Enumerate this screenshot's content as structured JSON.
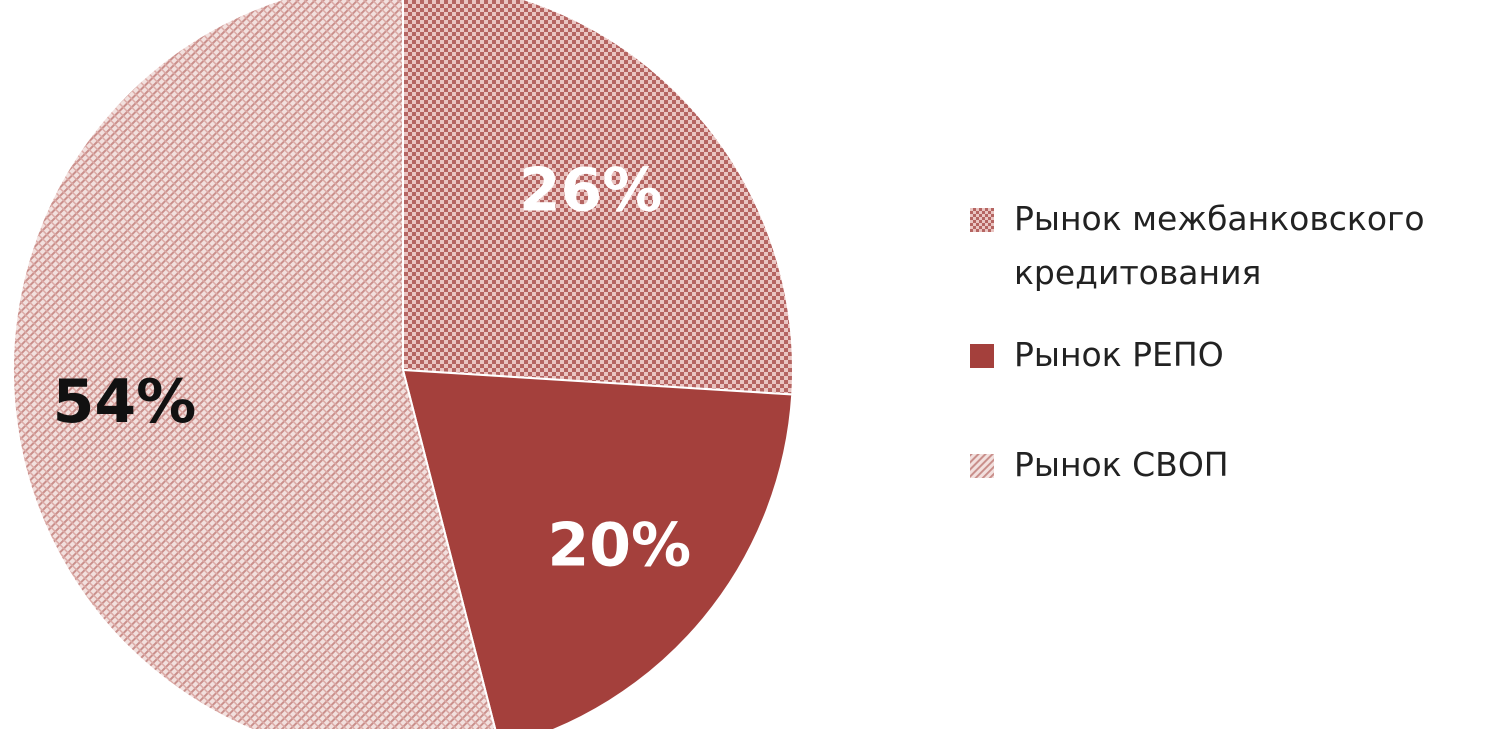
{
  "chart_data": {
    "type": "pie",
    "title": "",
    "categories": [
      "Рынок межбанковского кредитования",
      "Рынок РЕПО",
      "Рынок СВОП"
    ],
    "values": [
      26,
      20,
      54
    ],
    "labels": [
      "26%",
      "20%",
      "54%"
    ],
    "colors": [
      "#a44545",
      "#a4403c",
      "#c98f8b"
    ],
    "label_colors": [
      "#ffffff",
      "#ffffff",
      "#111111"
    ],
    "legend_placement": "right"
  }
}
